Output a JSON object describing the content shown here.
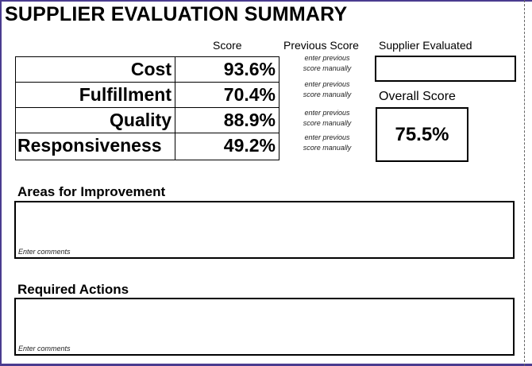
{
  "title": "SUPPLIER EVALUATION SUMMARY",
  "headers": {
    "score": "Score",
    "previous_score": "Previous Score",
    "supplier_evaluated": "Supplier Evaluated"
  },
  "criteria": [
    {
      "label": "Cost",
      "score": "93.6%",
      "previous_hint": "enter previous\nscore manually"
    },
    {
      "label": "Fulfillment",
      "score": "70.4%",
      "previous_hint": "enter previous\nscore manually"
    },
    {
      "label": "Quality",
      "score": "88.9%",
      "previous_hint": "enter previous\nscore manually"
    },
    {
      "label": "Responsiveness",
      "score": "49.2%",
      "previous_hint": "enter previous\nscore manually"
    }
  ],
  "supplier_evaluated_value": "",
  "overall": {
    "label": "Overall Score",
    "value": "75.5%"
  },
  "areas_for_improvement": {
    "title": "Areas for Improvement",
    "placeholder": "Enter comments",
    "value": ""
  },
  "required_actions": {
    "title": "Required Actions",
    "placeholder": "Enter comments",
    "value": ""
  }
}
